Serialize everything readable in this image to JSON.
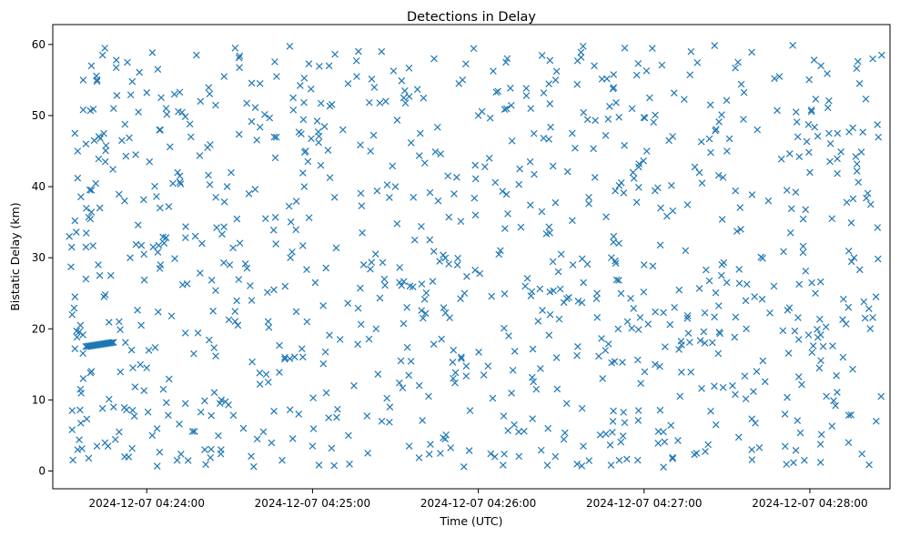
{
  "chart_data": {
    "type": "scatter",
    "title": "Detections in Delay",
    "xlabel": "Time (UTC)",
    "ylabel": "Bistatic Delay (km)",
    "x_unit": "UTC timestamp",
    "xlim": [
      "2024-12-07 04:23:26",
      "2024-12-07 04:28:29"
    ],
    "ylim": [
      -2.5,
      62.8
    ],
    "x_ticks": [
      "2024-12-07 04:24:00",
      "2024-12-07 04:25:00",
      "2024-12-07 04:26:00",
      "2024-12-07 04:27:00",
      "2024-12-07 04:28:00"
    ],
    "y_ticks": [
      0,
      10,
      20,
      30,
      40,
      50,
      60
    ],
    "marker": "x",
    "grid": false,
    "legend": "none",
    "color": "#1f77b4",
    "series": [
      {
        "points_approx": "approximately 1000 detections scattered uniformly between 04:23:32 and 04:28:26 over delays 0–60 km, with a dense horizontal cluster near 17.5–18 km between 04:23:38 and 04:23:48",
        "points": [
          [
            "2024-12-07 04:23:32",
            33.0
          ],
          [
            "2024-12-07 04:23:33",
            22.0
          ],
          [
            "2024-12-07 04:23:33",
            8.5
          ],
          [
            "2024-12-07 04:23:33",
            5.8
          ],
          [
            "2024-12-07 04:23:34",
            24.5
          ],
          [
            "2024-12-07 04:23:34",
            35.2
          ],
          [
            "2024-12-07 04:23:34",
            47.5
          ],
          [
            "2024-12-07 04:23:34",
            17.2
          ],
          [
            "2024-12-07 04:23:35",
            41.2
          ],
          [
            "2024-12-07 04:23:35",
            45.0
          ],
          [
            "2024-12-07 04:23:35",
            3.0
          ],
          [
            "2024-12-07 04:23:36",
            11.5
          ],
          [
            "2024-12-07 04:23:36",
            20.5
          ],
          [
            "2024-12-07 04:23:37",
            50.8
          ],
          [
            "2024-12-07 04:23:37",
            55.0
          ],
          [
            "2024-12-07 04:23:37",
            13.0
          ],
          [
            "2024-12-07 04:23:38",
            46.0
          ],
          [
            "2024-12-07 04:23:38",
            31.5
          ],
          [
            "2024-12-07 04:23:38",
            27.0
          ],
          [
            "2024-12-07 04:23:39",
            35.7
          ],
          [
            "2024-12-07 04:23:39",
            1.8
          ],
          [
            "2024-12-07 04:23:40",
            57.0
          ],
          [
            "2024-12-07 04:23:40",
            39.5
          ],
          [
            "2024-12-07 04:23:40",
            14.0
          ],
          [
            "2024-12-07 04:23:41",
            46.5
          ],
          [
            "2024-12-07 04:23:42",
            54.8
          ],
          [
            "2024-12-07 04:23:42",
            3.5
          ],
          [
            "2024-12-07 04:23:43",
            37.0
          ],
          [
            "2024-12-07 04:23:43",
            27.5
          ],
          [
            "2024-12-07 04:23:44",
            58.5
          ],
          [
            "2024-12-07 04:23:44",
            8.8
          ],
          [
            "2024-12-07 04:23:45",
            43.5
          ],
          [
            "2024-12-07 04:23:45",
            24.8
          ],
          [
            "2024-12-07 04:23:46",
            3.5
          ],
          [
            "2024-12-07 04:23:47",
            27.5
          ],
          [
            "2024-12-07 04:23:48",
            51.0
          ],
          [
            "2024-12-07 04:23:48",
            9.0
          ],
          [
            "2024-12-07 04:23:49",
            57.8
          ],
          [
            "2024-12-07 04:23:50",
            21.0
          ],
          [
            "2024-12-07 04:23:50",
            5.5
          ],
          [
            "2024-12-07 04:23:51",
            46.5
          ],
          [
            "2024-12-07 04:23:52",
            38.0
          ],
          [
            "2024-12-07 04:23:52",
            2.0
          ],
          [
            "2024-12-07 04:23:53",
            57.5
          ],
          [
            "2024-12-07 04:23:54",
            30.0
          ],
          [
            "2024-12-07 04:23:55",
            14.5
          ],
          [
            "2024-12-07 04:23:56",
            44.5
          ],
          [
            "2024-12-07 04:23:57",
            50.5
          ],
          [
            "2024-12-07 04:23:58",
            20.5
          ],
          [
            "2024-12-07 04:23:59",
            30.5
          ],
          [
            "2024-12-07 04:24:00",
            14.5
          ],
          [
            "2024-12-07 04:24:01",
            43.5
          ],
          [
            "2024-12-07 04:24:02",
            5.0
          ],
          [
            "2024-12-07 04:24:04",
            56.5
          ],
          [
            "2024-12-07 04:24:05",
            29.0
          ],
          [
            "2024-12-07 04:24:06",
            11.5
          ],
          [
            "2024-12-07 04:24:07",
            51.0
          ],
          [
            "2024-12-07 04:24:08",
            37.2
          ],
          [
            "2024-12-07 04:24:09",
            21.8
          ],
          [
            "2024-12-07 04:24:10",
            53.0
          ],
          [
            "2024-12-07 04:24:11",
            1.5
          ],
          [
            "2024-12-07 04:24:12",
            41.5
          ],
          [
            "2024-12-07 04:24:13",
            26.2
          ],
          [
            "2024-12-07 04:24:14",
            9.5
          ],
          [
            "2024-12-07 04:24:16",
            47.0
          ],
          [
            "2024-12-07 04:24:17",
            16.5
          ],
          [
            "2024-12-07 04:24:18",
            58.5
          ],
          [
            "2024-12-07 04:24:20",
            32.0
          ],
          [
            "2024-12-07 04:24:21",
            3.0
          ],
          [
            "2024-12-07 04:24:22",
            45.5
          ],
          [
            "2024-12-07 04:24:24",
            22.5
          ],
          [
            "2024-12-07 04:24:25",
            38.5
          ],
          [
            "2024-12-07 04:24:27",
            10.0
          ],
          [
            "2024-12-07 04:24:28",
            55.5
          ],
          [
            "2024-12-07 04:24:30",
            29.0
          ],
          [
            "2024-12-07 04:24:32",
            59.5
          ],
          [
            "2024-12-07 04:24:33",
            20.5
          ],
          [
            "2024-12-07 04:24:35",
            6.0
          ],
          [
            "2024-12-07 04:24:37",
            39.0
          ],
          [
            "2024-12-07 04:24:38",
            24.0
          ],
          [
            "2024-12-07 04:24:40",
            4.5
          ],
          [
            "2024-12-07 04:24:41",
            54.5
          ],
          [
            "2024-12-07 04:24:43",
            35.5
          ],
          [
            "2024-12-07 04:24:44",
            12.5
          ],
          [
            "2024-12-07 04:24:46",
            25.5
          ],
          [
            "2024-12-07 04:24:47",
            55.5
          ],
          [
            "2024-12-07 04:24:49",
            1.5
          ],
          [
            "2024-12-07 04:24:50",
            16.0
          ],
          [
            "2024-12-07 04:24:52",
            30.0
          ],
          [
            "2024-12-07 04:24:53",
            52.5
          ],
          [
            "2024-12-07 04:24:55",
            8.0
          ],
          [
            "2024-12-07 04:24:57",
            40.0
          ],
          [
            "2024-12-07 04:24:58",
            21.0
          ],
          [
            "2024-12-07 04:25:00",
            3.5
          ],
          [
            "2024-12-07 04:25:01",
            26.5
          ],
          [
            "2024-12-07 04:25:03",
            43.0
          ],
          [
            "2024-12-07 04:25:05",
            11.0
          ],
          [
            "2024-12-07 04:25:06",
            57.0
          ],
          [
            "2024-12-07 04:25:08",
            38.5
          ],
          [
            "2024-12-07 04:25:10",
            18.5
          ],
          [
            "2024-12-07 04:25:11",
            48.0
          ],
          [
            "2024-12-07 04:25:13",
            5.0
          ],
          [
            "2024-12-07 04:25:15",
            12.0
          ],
          [
            "2024-12-07 04:25:16",
            55.5
          ],
          [
            "2024-12-07 04:25:18",
            33.5
          ],
          [
            "2024-12-07 04:25:20",
            2.5
          ],
          [
            "2024-12-07 04:25:21",
            45.0
          ],
          [
            "2024-12-07 04:25:23",
            20.0
          ],
          [
            "2024-12-07 04:25:25",
            59.0
          ],
          [
            "2024-12-07 04:25:26",
            27.0
          ],
          [
            "2024-12-07 04:25:28",
            9.0
          ],
          [
            "2024-12-07 04:25:30",
            40.0
          ],
          [
            "2024-12-07 04:25:32",
            15.5
          ],
          [
            "2024-12-07 04:25:33",
            52.5
          ],
          [
            "2024-12-07 04:25:35",
            3.5
          ],
          [
            "2024-12-07 04:25:37",
            32.5
          ],
          [
            "2024-12-07 04:25:39",
            47.5
          ],
          [
            "2024-12-07 04:25:40",
            21.5
          ],
          [
            "2024-12-07 04:25:42",
            10.5
          ],
          [
            "2024-12-07 04:25:44",
            58.0
          ],
          [
            "2024-12-07 04:25:46",
            29.5
          ],
          [
            "2024-12-07 04:25:48",
            4.5
          ],
          [
            "2024-12-07 04:25:49",
            41.5
          ],
          [
            "2024-12-07 04:25:51",
            17.0
          ],
          [
            "2024-12-07 04:25:53",
            54.5
          ],
          [
            "2024-12-07 04:25:55",
            25.0
          ],
          [
            "2024-12-07 04:25:57",
            8.5
          ],
          [
            "2024-12-07 04:25:59",
            36.0
          ],
          [
            "2024-12-07 04:26:00",
            50.0
          ],
          [
            "2024-12-07 04:26:02",
            13.5
          ],
          [
            "2024-12-07 04:26:04",
            44.0
          ],
          [
            "2024-12-07 04:26:06",
            2.0
          ],
          [
            "2024-12-07 04:26:08",
            31.0
          ],
          [
            "2024-12-07 04:26:10",
            57.5
          ],
          [
            "2024-12-07 04:26:11",
            19.0
          ],
          [
            "2024-12-07 04:26:13",
            6.5
          ],
          [
            "2024-12-07 04:26:15",
            42.5
          ],
          [
            "2024-12-07 04:26:17",
            26.0
          ],
          [
            "2024-12-07 04:26:19",
            51.0
          ],
          [
            "2024-12-07 04:26:21",
            11.5
          ],
          [
            "2024-12-07 04:26:23",
            36.5
          ],
          [
            "2024-12-07 04:26:25",
            0.8
          ],
          [
            "2024-12-07 04:26:26",
            22.0
          ],
          [
            "2024-12-07 04:26:28",
            55.0
          ],
          [
            "2024-12-07 04:26:30",
            30.5
          ],
          [
            "2024-12-07 04:26:32",
            9.5
          ],
          [
            "2024-12-07 04:26:34",
            47.5
          ],
          [
            "2024-12-07 04:26:36",
            17.5
          ],
          [
            "2024-12-07 04:26:38",
            3.5
          ],
          [
            "2024-12-07 04:26:40",
            38.5
          ],
          [
            "2024-12-07 04:26:42",
            57.0
          ],
          [
            "2024-12-07 04:26:43",
            25.0
          ],
          [
            "2024-12-07 04:26:45",
            13.0
          ],
          [
            "2024-12-07 04:26:47",
            49.5
          ],
          [
            "2024-12-07 04:26:49",
            33.0
          ],
          [
            "2024-12-07 04:26:51",
            1.5
          ],
          [
            "2024-12-07 04:26:53",
            59.5
          ],
          [
            "2024-12-07 04:26:54",
            21.0
          ],
          [
            "2024-12-07 04:26:56",
            42.0
          ],
          [
            "2024-12-07 04:26:58",
            8.5
          ],
          [
            "2024-12-07 04:27:00",
            29.0
          ],
          [
            "2024-12-07 04:27:02",
            52.5
          ],
          [
            "2024-12-07 04:27:04",
            15.0
          ],
          [
            "2024-12-07 04:27:06",
            37.0
          ],
          [
            "2024-12-07 04:27:07",
            5.5
          ],
          [
            "2024-12-07 04:27:09",
            46.5
          ],
          [
            "2024-12-07 04:27:11",
            23.0
          ],
          [
            "2024-12-07 04:27:13",
            10.5
          ],
          [
            "2024-12-07 04:27:15",
            31.0
          ],
          [
            "2024-12-07 04:27:17",
            59.0
          ],
          [
            "2024-12-07 04:27:19",
            2.5
          ],
          [
            "2024-12-07 04:27:21",
            40.5
          ],
          [
            "2024-12-07 04:27:22",
            18.0
          ],
          [
            "2024-12-07 04:27:24",
            51.5
          ],
          [
            "2024-12-07 04:27:26",
            6.5
          ],
          [
            "2024-12-07 04:27:28",
            27.5
          ],
          [
            "2024-12-07 04:27:30",
            45.0
          ],
          [
            "2024-12-07 04:27:32",
            12.0
          ],
          [
            "2024-12-07 04:27:34",
            57.5
          ],
          [
            "2024-12-07 04:27:35",
            34.0
          ],
          [
            "2024-12-07 04:27:37",
            20.0
          ],
          [
            "2024-12-07 04:27:39",
            3.0
          ],
          [
            "2024-12-07 04:27:41",
            48.0
          ],
          [
            "2024-12-07 04:27:43",
            15.5
          ],
          [
            "2024-12-07 04:27:45",
            38.0
          ],
          [
            "2024-12-07 04:27:47",
            26.0
          ],
          [
            "2024-12-07 04:27:49",
            55.5
          ],
          [
            "2024-12-07 04:27:51",
            8.0
          ],
          [
            "2024-12-07 04:27:53",
            33.5
          ],
          [
            "2024-12-07 04:27:55",
            50.5
          ],
          [
            "2024-12-07 04:27:56",
            18.5
          ],
          [
            "2024-12-07 04:27:58",
            1.5
          ],
          [
            "2024-12-07 04:28:00",
            42.0
          ],
          [
            "2024-12-07 04:28:02",
            25.0
          ],
          [
            "2024-12-07 04:28:04",
            57.0
          ],
          [
            "2024-12-07 04:28:06",
            10.5
          ],
          [
            "2024-12-07 04:28:08",
            35.5
          ],
          [
            "2024-12-07 04:28:10",
            47.5
          ],
          [
            "2024-12-07 04:28:12",
            16.0
          ],
          [
            "2024-12-07 04:28:14",
            4.0
          ],
          [
            "2024-12-07 04:28:16",
            30.0
          ],
          [
            "2024-12-07 04:28:18",
            54.5
          ],
          [
            "2024-12-07 04:28:20",
            21.5
          ],
          [
            "2024-12-07 04:28:22",
            37.5
          ],
          [
            "2024-12-07 04:28:24",
            7.0
          ],
          [
            "2024-12-07 04:28:26",
            58.5
          ]
        ],
        "cluster": {
          "x_range": [
            "2024-12-07 04:23:38",
            "2024-12-07 04:23:48"
          ],
          "y_range": [
            17.5,
            18.1
          ],
          "count": 22
        }
      }
    ]
  }
}
